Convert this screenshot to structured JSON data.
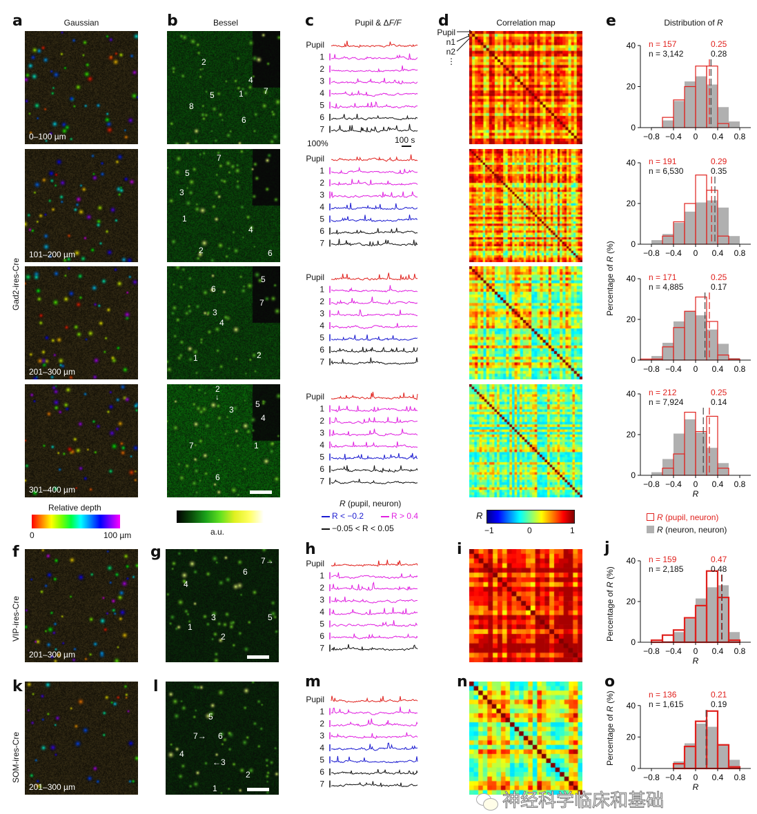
{
  "panels": {
    "a": {
      "label": "a",
      "title": "Gaussian",
      "side_label": "Gad2-ires-Cre",
      "depths": [
        "0–100 µm",
        "101–200 µm",
        "201–300 µm",
        "301–400 µm"
      ]
    },
    "b": {
      "label": "b",
      "title": "Bessel",
      "cell_numbers": [
        [
          "2",
          "5",
          "8",
          "4",
          "1",
          "7",
          "6"
        ],
        [
          "7",
          "5",
          "3",
          "1",
          "4",
          "2",
          "6"
        ],
        [
          "6",
          "5",
          "7",
          "3",
          "4",
          "1",
          "2"
        ],
        [
          "2",
          "3",
          "5",
          "4",
          "7",
          "1",
          "6"
        ]
      ]
    },
    "c": {
      "label": "c",
      "title_prefix": "Pupil & Δ",
      "title_italic": "F/F",
      "trace_labels": [
        "Pupil",
        "1",
        "2",
        "3",
        "4",
        "5",
        "6",
        "7"
      ],
      "scale_y": "100%",
      "scale_x": "100 s",
      "trace_colors": [
        [
          "red",
          "magenta",
          "magenta",
          "magenta",
          "magenta",
          "magenta",
          "black",
          "black"
        ],
        [
          "red",
          "magenta",
          "magenta",
          "magenta",
          "blue",
          "blue",
          "black",
          "black"
        ],
        [
          "red",
          "magenta",
          "magenta",
          "magenta",
          "magenta",
          "blue",
          "black",
          "black"
        ],
        [
          "red",
          "magenta",
          "magenta",
          "magenta",
          "magenta",
          "blue",
          "black",
          "black"
        ]
      ]
    },
    "d": {
      "label": "d",
      "title": "Correlation map",
      "row_labels": [
        "Pupil",
        "n1",
        "n2",
        "⋮"
      ]
    },
    "e": {
      "label": "e",
      "title_prefix": "Distribution of ",
      "title_italic": "R"
    },
    "f": {
      "label": "f",
      "side_label": "VIP-ires-Cre",
      "depth": "201–300 µm"
    },
    "g": {
      "label": "g",
      "cell_numbers": [
        "7",
        "6",
        "4",
        "3",
        "5",
        "1",
        "2"
      ]
    },
    "h": {
      "label": "h",
      "trace_labels": [
        "Pupil",
        "1",
        "2",
        "3",
        "4",
        "5",
        "6",
        "7"
      ],
      "trace_colors": [
        "red",
        "magenta",
        "magenta",
        "magenta",
        "magenta",
        "magenta",
        "magenta",
        "black"
      ]
    },
    "i": {
      "label": "i"
    },
    "k": {
      "label": "k",
      "side_label": "SOM-ires-Cre",
      "depth": "201–300 µm"
    },
    "l": {
      "label": "l",
      "cell_numbers": [
        "5",
        "7",
        "6",
        "4",
        "3",
        "2",
        "1"
      ]
    },
    "m": {
      "label": "m",
      "trace_labels": [
        "Pupil",
        "1",
        "2",
        "3",
        "4",
        "5",
        "6",
        "7"
      ],
      "trace_colors": [
        "red",
        "magenta",
        "magenta",
        "magenta",
        "blue",
        "blue",
        "black",
        "black"
      ]
    },
    "n": {
      "label": "n"
    },
    "j": {
      "label": "j"
    },
    "o": {
      "label": "o"
    }
  },
  "colorbars": {
    "depth": {
      "title": "Relative depth",
      "min": "0",
      "max": "100 µm"
    },
    "intensity": {
      "label": "a.u."
    },
    "correlation": {
      "symbol": "R",
      "ticks": [
        "−1",
        "0",
        "1"
      ]
    }
  },
  "trace_legend": {
    "title_italic": "R",
    "title_rest": " (pupil, neuron)",
    "neg": "R < −0.2",
    "pos": "R > 0.4",
    "zero": "−0.05 < R < 0.05"
  },
  "hist_legend": {
    "pupil_italic": "R",
    "pupil_rest": " (pupil, neuron)",
    "neuron_italic": "R",
    "neuron_rest": " (neuron, neuron)"
  },
  "colors": {
    "red": "#e0201c",
    "magenta": "#e020e0",
    "blue": "#1a1ad0",
    "black": "#111111",
    "gray": "#b0b0b0"
  },
  "watermark": "神经科学临床和基础",
  "chart_data": [
    {
      "type": "bar",
      "panel": "e1",
      "title": "Distribution of R",
      "xlabel": "",
      "ylabel": "Percentage of R (%)",
      "bin_edges": [
        -1.0,
        -0.8,
        -0.6,
        -0.4,
        -0.2,
        0,
        0.2,
        0.4,
        0.6,
        0.8,
        1.0
      ],
      "xticks": [
        "−0.8",
        "−0.4",
        "0",
        "0.4",
        "0.8"
      ],
      "yticks": [
        "0",
        "20",
        "40"
      ],
      "ylim": [
        0,
        40
      ],
      "series": [
        {
          "name": "R (pupil, neuron)",
          "style": "outline",
          "values": [
            0,
            0,
            5,
            13.5,
            20,
            30,
            30,
            2,
            0,
            0
          ]
        },
        {
          "name": "R (neuron, neuron)",
          "style": "filled",
          "values": [
            0,
            0.3,
            3.5,
            13,
            22.5,
            25,
            21,
            10,
            3,
            0
          ]
        }
      ],
      "annotations": {
        "n_pupil": "n = 157",
        "n_neuron": "n = 3,142",
        "median_pupil": "0.25",
        "median_neuron": "0.28"
      },
      "medians": {
        "pupil": 0.25,
        "neuron": 0.28
      }
    },
    {
      "type": "bar",
      "panel": "e2",
      "xlabel": "",
      "ylabel": "",
      "bin_edges": [
        -1.0,
        -0.8,
        -0.6,
        -0.4,
        -0.2,
        0,
        0.2,
        0.4,
        0.6,
        0.8,
        1.0
      ],
      "xticks": [
        "−0.8",
        "−0.4",
        "0",
        "0.4",
        "0.8"
      ],
      "yticks": [
        "0",
        "20",
        "40"
      ],
      "ylim": [
        0,
        40
      ],
      "series": [
        {
          "name": "R (pupil, neuron)",
          "style": "outline",
          "values": [
            0,
            0,
            4,
            11,
            20,
            34,
            26.5,
            4,
            0,
            0
          ]
        },
        {
          "name": "R (neuron, neuron)",
          "style": "filled",
          "values": [
            0,
            2,
            5,
            10.5,
            16,
            20.5,
            21.5,
            18,
            4,
            0
          ]
        }
      ],
      "annotations": {
        "n_pupil": "n = 191",
        "n_neuron": "n = 6,530",
        "median_pupil": "0.29",
        "median_neuron": "0.35"
      },
      "medians": {
        "pupil": 0.29,
        "neuron": 0.35
      }
    },
    {
      "type": "bar",
      "panel": "e3",
      "xlabel": "",
      "ylabel": "Percentage of R (%)",
      "bin_edges": [
        -1.0,
        -0.8,
        -0.6,
        -0.4,
        -0.2,
        0,
        0.2,
        0.4,
        0.6,
        0.8,
        1.0
      ],
      "xticks": [
        "−0.8",
        "−0.4",
        "0",
        "0.4",
        "0.8"
      ],
      "yticks": [
        "0",
        "20",
        "40"
      ],
      "ylim": [
        0,
        40
      ],
      "series": [
        {
          "name": "R (pupil, neuron)",
          "style": "outline",
          "values": [
            0.5,
            0.5,
            6.5,
            16,
            24,
            31,
            19,
            2.5,
            0.5,
            0
          ],
          "bins_start": -0.9
        },
        {
          "name": "R (neuron, neuron)",
          "style": "filled",
          "values": [
            0,
            2,
            8.5,
            19,
            24,
            22,
            15,
            8,
            1,
            0
          ]
        }
      ],
      "annotations": {
        "n_pupil": "n = 171",
        "n_neuron": "n = 4,885",
        "median_pupil": "0.25",
        "median_neuron": "0.17"
      },
      "medians": {
        "pupil": 0.25,
        "neuron": 0.17
      }
    },
    {
      "type": "bar",
      "panel": "e4",
      "xlabel": "R",
      "ylabel": "",
      "bin_edges": [
        -1.0,
        -0.8,
        -0.6,
        -0.4,
        -0.2,
        0,
        0.2,
        0.4,
        0.6,
        0.8,
        1.0
      ],
      "xticks": [
        "−0.8",
        "−0.4",
        "0",
        "0.4",
        "0.8"
      ],
      "yticks": [
        "0",
        "20",
        "40"
      ],
      "ylim": [
        0,
        40
      ],
      "series": [
        {
          "name": "R (pupil, neuron)",
          "style": "outline",
          "values": [
            0,
            0,
            3.5,
            10.5,
            31,
            21.5,
            29,
            3.5,
            0,
            0
          ]
        },
        {
          "name": "R (neuron, neuron)",
          "style": "filled",
          "values": [
            0,
            1.5,
            8,
            20.5,
            27.5,
            21,
            13.5,
            6,
            0,
            0
          ]
        }
      ],
      "annotations": {
        "n_pupil": "n = 212",
        "n_neuron": "n = 7,924",
        "median_pupil": "0.25",
        "median_neuron": "0.14"
      },
      "medians": {
        "pupil": 0.25,
        "neuron": 0.14
      }
    },
    {
      "type": "bar",
      "panel": "j",
      "xlabel": "R",
      "ylabel": "Percentage of R (%)",
      "bin_edges": [
        -1.0,
        -0.8,
        -0.6,
        -0.4,
        -0.2,
        0,
        0.2,
        0.4,
        0.6,
        0.8,
        1.0
      ],
      "xticks": [
        "−0.8",
        "−0.4",
        "0",
        "0.4",
        "0.8"
      ],
      "yticks": [
        "0",
        "20",
        "40"
      ],
      "ylim": [
        0,
        40
      ],
      "series": [
        {
          "name": "R (pupil, neuron)",
          "style": "outline",
          "values": [
            0,
            1,
            3.5,
            6,
            12,
            18,
            35,
            22,
            1,
            0
          ]
        },
        {
          "name": "R (neuron, neuron)",
          "style": "filled",
          "values": [
            0,
            0,
            0.5,
            5,
            11.5,
            21.5,
            27,
            28,
            5,
            0
          ]
        }
      ],
      "annotations": {
        "n_pupil": "n = 159",
        "n_neuron": "n = 2,185",
        "median_pupil": "0.47",
        "median_neuron": "0.48"
      },
      "medians": {
        "pupil": 0.47,
        "neuron": 0.48
      }
    },
    {
      "type": "bar",
      "panel": "o",
      "xlabel": "R",
      "ylabel": "Percentage of R (%)",
      "bin_edges": [
        -1.0,
        -0.8,
        -0.6,
        -0.4,
        -0.2,
        0,
        0.2,
        0.4,
        0.6,
        0.8,
        1.0
      ],
      "xticks": [
        "−0.8",
        "−0.4",
        "0",
        "0.4",
        "0.8"
      ],
      "yticks": [
        "0",
        "20",
        "40"
      ],
      "ylim": [
        0,
        50
      ],
      "series": [
        {
          "name": "R (pupil, neuron)",
          "style": "outline",
          "values": [
            0,
            0,
            0,
            3,
            14,
            30,
            36.5,
            15,
            1,
            0
          ]
        },
        {
          "name": "R (neuron, neuron)",
          "style": "filled",
          "values": [
            0,
            0,
            0,
            4.5,
            16,
            28.5,
            26.5,
            15.5,
            5.5,
            0
          ]
        }
      ],
      "annotations": {
        "n_pupil": "n = 136",
        "n_neuron": "n = 1,615",
        "median_pupil": "0.21",
        "median_neuron": "0.19"
      },
      "medians": {
        "pupil": 0.21,
        "neuron": 0.19
      }
    },
    {
      "type": "heatmap",
      "panel": "d",
      "title": "Correlation map",
      "colorbar_range": [
        -1,
        1
      ],
      "colormap": "jet",
      "maps": 4
    },
    {
      "type": "heatmap",
      "panel": "i",
      "colorbar_range": [
        -1,
        1
      ],
      "colormap": "jet"
    },
    {
      "type": "heatmap",
      "panel": "n",
      "colorbar_range": [
        -1,
        1
      ],
      "colormap": "jet"
    }
  ]
}
